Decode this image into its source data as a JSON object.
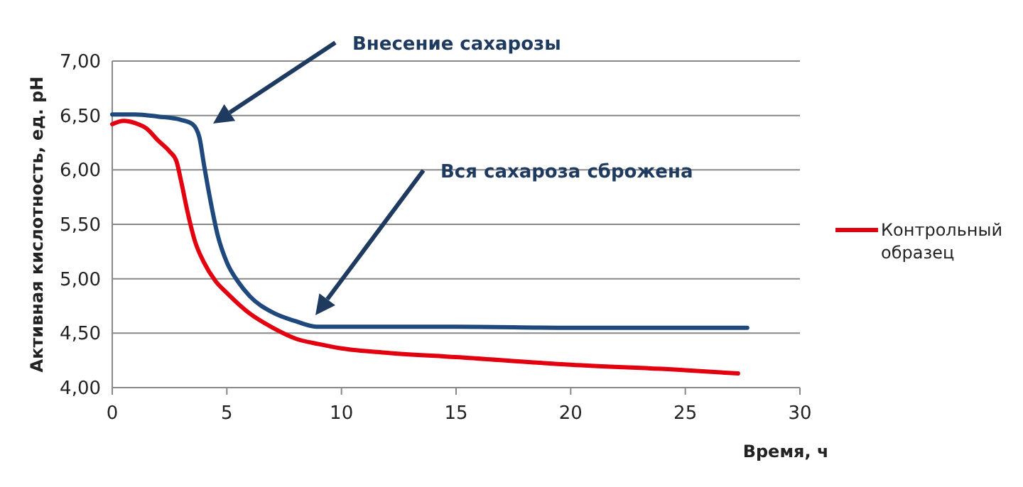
{
  "chart_data": {
    "type": "line",
    "xlabel": "Время, ч",
    "ylabel": "Активная кислотность, ед. pH",
    "xlim": [
      0,
      30
    ],
    "xticks": [
      0,
      5,
      10,
      15,
      20,
      25,
      30
    ],
    "ylim": [
      4,
      7
    ],
    "yticks": [
      {
        "value": 4,
        "label": "4,00"
      },
      {
        "value": 4.5,
        "label": "4,50"
      },
      {
        "value": 5,
        "label": "5,00"
      },
      {
        "value": 5.5,
        "label": "5,50"
      },
      {
        "value": 6,
        "label": "6,00"
      },
      {
        "value": 6.5,
        "label": "6,50"
      },
      {
        "value": 7,
        "label": "7,00"
      }
    ],
    "grid": "y",
    "legend": "right",
    "marker": "none",
    "line_style": "solid",
    "annotations": [
      "Внесение сахарозы",
      "Вся сахароза сброжена"
    ],
    "series": [
      {
        "name": "Контрольный образец",
        "color": "#e3000f",
        "x": [
          0,
          0.5,
          1,
          1.5,
          2,
          2.5,
          2.8,
          3,
          3.3,
          3.6,
          4,
          4.5,
          5,
          6,
          7,
          8,
          9,
          10,
          12,
          15,
          20,
          25,
          27.3
        ],
        "values": [
          6.42,
          6.45,
          6.43,
          6.38,
          6.27,
          6.17,
          6.08,
          5.9,
          5.6,
          5.35,
          5.15,
          4.98,
          4.87,
          4.68,
          4.55,
          4.45,
          4.4,
          4.36,
          4.32,
          4.28,
          4.21,
          4.16,
          4.13
        ]
      },
      {
        "color": "#1f497d",
        "x": [
          0,
          1,
          2,
          3,
          3.5,
          3.8,
          4,
          4.3,
          4.6,
          5,
          5.5,
          6,
          7,
          8,
          8.9,
          10,
          15,
          20,
          25,
          27.7
        ],
        "values": [
          6.51,
          6.51,
          6.49,
          6.46,
          6.42,
          6.3,
          6.05,
          5.7,
          5.4,
          5.15,
          4.97,
          4.84,
          4.69,
          4.61,
          4.56,
          4.56,
          4.56,
          4.55,
          4.55,
          4.55
        ]
      }
    ]
  }
}
